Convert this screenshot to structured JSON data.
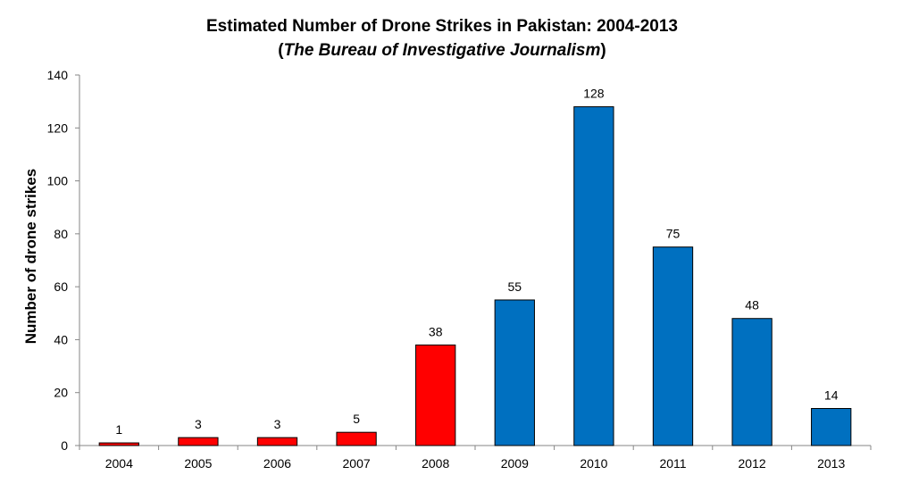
{
  "chart_data": {
    "type": "bar",
    "title": "Estimated Number of Drone Strikes in Pakistan: 2004-2013",
    "subtitle": "The Bureau of Investigative Journalism",
    "xlabel": "",
    "ylabel": "Number of drone strikes",
    "categories": [
      "2004",
      "2005",
      "2006",
      "2007",
      "2008",
      "2009",
      "2010",
      "2011",
      "2012",
      "2013"
    ],
    "values": [
      1,
      3,
      3,
      5,
      38,
      55,
      128,
      75,
      48,
      14
    ],
    "bar_colors": [
      "#ff0000",
      "#ff0000",
      "#ff0000",
      "#ff0000",
      "#ff0000",
      "#0070c0",
      "#0070c0",
      "#0070c0",
      "#0070c0",
      "#0070c0"
    ],
    "ylim": [
      0,
      140
    ],
    "yticks": [
      0,
      20,
      40,
      60,
      80,
      100,
      120,
      140
    ],
    "grid": false,
    "legend": "none",
    "data_labels": true
  }
}
